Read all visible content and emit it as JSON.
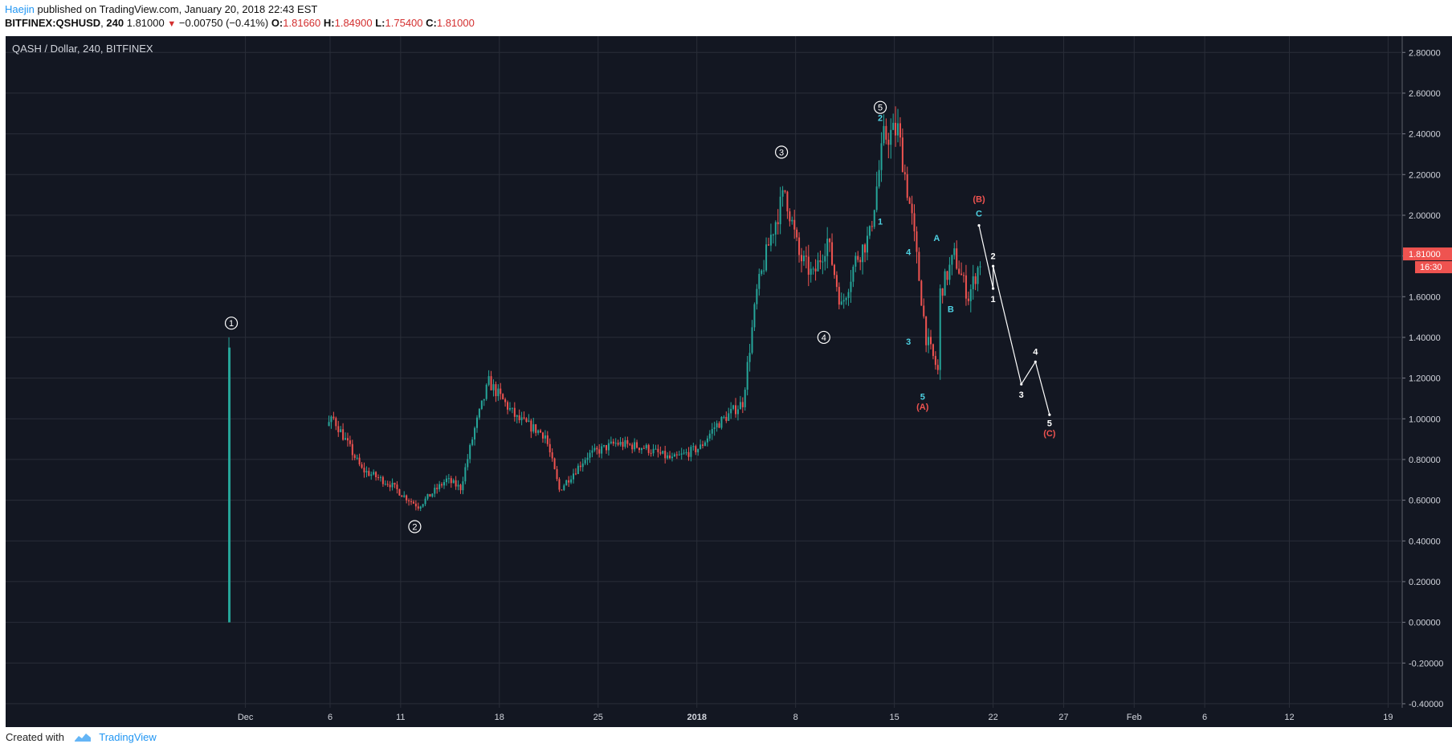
{
  "header": {
    "author": "Haejin",
    "published_text": "published on TradingView.com, January 20, 2018 22:43 EST",
    "symbol": "BITFINEX:QSHUSD",
    "interval": "240",
    "last": "1.81000",
    "change": "−0.00750 (−0.41%)",
    "o_label": "O:",
    "o_value": "1.81660",
    "h_label": "H:",
    "h_value": "1.84900",
    "l_label": "L:",
    "l_value": "1.75400",
    "c_label": "C:",
    "c_value": "1.81000"
  },
  "footer": {
    "created_with": "Created with",
    "brand": "TradingView"
  },
  "colors": {
    "up": "#26a69a",
    "down": "#ef5350",
    "bg": "#131722",
    "grid": "#2a2e39",
    "cyan": "#4dd0e1",
    "white_wave": "#ffffff",
    "abc_red": "#ef5350",
    "price_tag": "#ef5350"
  },
  "chart_data": {
    "type": "candlestick",
    "title": "QASH / Dollar, 240, BITFINEX",
    "x_axis": {
      "type": "date",
      "range": [
        "2017-11-13",
        "2018-02-20"
      ],
      "ticks": [
        {
          "date": "2017-11-30",
          "label": "Dec"
        },
        {
          "date": "2017-12-06",
          "label": "6"
        },
        {
          "date": "2017-12-11",
          "label": "11"
        },
        {
          "date": "2017-12-18",
          "label": "18"
        },
        {
          "date": "2017-12-25",
          "label": "25"
        },
        {
          "date": "2018-01-01",
          "label": "2018"
        },
        {
          "date": "2018-01-08",
          "label": "8"
        },
        {
          "date": "2018-01-15",
          "label": "15"
        },
        {
          "date": "2018-01-22",
          "label": "22"
        },
        {
          "date": "2018-01-27",
          "label": "27"
        },
        {
          "date": "2018-02-01",
          "label": "Feb"
        },
        {
          "date": "2018-02-06",
          "label": "6"
        },
        {
          "date": "2018-02-12",
          "label": "12"
        },
        {
          "date": "2018-02-19",
          "label": "19"
        }
      ]
    },
    "y_axis": {
      "range": [
        -0.42,
        2.88
      ],
      "ticks": [
        "2.80000",
        "2.60000",
        "2.40000",
        "2.20000",
        "2.00000",
        "1.80000",
        "1.60000",
        "1.40000",
        "1.20000",
        "1.00000",
        "0.80000",
        "0.60000",
        "0.40000",
        "0.20000",
        "0.00000",
        "-0.20000",
        "-0.40000"
      ]
    },
    "grid": true,
    "last_price": {
      "value": 1.81,
      "label": "1.81000",
      "countdown": "16:30"
    },
    "price_path": [
      {
        "date": "2017-11-29",
        "price": 0.0
      },
      {
        "date": "2017-11-29",
        "price": 1.38
      },
      {
        "date": "2017-11-30",
        "price": 1.0
      },
      {
        "date": "2017-12-01",
        "price": 1.12
      },
      {
        "date": "2017-12-03",
        "price": 1.0
      },
      {
        "date": "2017-12-05",
        "price": 0.93
      },
      {
        "date": "2017-12-06",
        "price": 1.0
      },
      {
        "date": "2017-12-08",
        "price": 0.75
      },
      {
        "date": "2017-12-10",
        "price": 0.68
      },
      {
        "date": "2017-12-11",
        "price": 0.62
      },
      {
        "date": "2017-12-12",
        "price": 0.57
      },
      {
        "date": "2017-12-14",
        "price": 0.7
      },
      {
        "date": "2017-12-15",
        "price": 0.66
      },
      {
        "date": "2017-12-16",
        "price": 0.95
      },
      {
        "date": "2017-12-17",
        "price": 1.18
      },
      {
        "date": "2017-12-19",
        "price": 1.0
      },
      {
        "date": "2017-12-21",
        "price": 0.92
      },
      {
        "date": "2017-12-22",
        "price": 0.65
      },
      {
        "date": "2017-12-24",
        "price": 0.82
      },
      {
        "date": "2017-12-26",
        "price": 0.88
      },
      {
        "date": "2017-12-28",
        "price": 0.86
      },
      {
        "date": "2017-12-30",
        "price": 0.8
      },
      {
        "date": "2018-01-01",
        "price": 0.86
      },
      {
        "date": "2018-01-02",
        "price": 0.96
      },
      {
        "date": "2018-01-04",
        "price": 1.08
      },
      {
        "date": "2018-01-05",
        "price": 1.62
      },
      {
        "date": "2018-01-06",
        "price": 1.9
      },
      {
        "date": "2018-01-07",
        "price": 2.12
      },
      {
        "date": "2018-01-08",
        "price": 1.8
      },
      {
        "date": "2018-01-09",
        "price": 1.7
      },
      {
        "date": "2018-01-10",
        "price": 1.88
      },
      {
        "date": "2018-01-11",
        "price": 1.55
      },
      {
        "date": "2018-01-12",
        "price": 1.78
      },
      {
        "date": "2018-01-13",
        "price": 1.9
      },
      {
        "date": "2018-01-14",
        "price": 2.38
      },
      {
        "date": "2018-01-15",
        "price": 2.42
      },
      {
        "date": "2018-01-16",
        "price": 1.98
      },
      {
        "date": "2018-01-17",
        "price": 1.4
      },
      {
        "date": "2018-01-18",
        "price": 1.2
      },
      {
        "date": "2018-01-18",
        "price": 1.62
      },
      {
        "date": "2018-01-19",
        "price": 1.8
      },
      {
        "date": "2018-01-20",
        "price": 1.6
      },
      {
        "date": "2018-01-21",
        "price": 1.81
      }
    ],
    "wave_labels": [
      {
        "text": "1",
        "style": "circle",
        "date": "2017-11-29",
        "price": 1.47
      },
      {
        "text": "2",
        "style": "circle",
        "date": "2017-12-12",
        "price": 0.47
      },
      {
        "text": "3",
        "style": "circle",
        "date": "2018-01-07",
        "price": 2.31
      },
      {
        "text": "4",
        "style": "circle",
        "date": "2018-01-10",
        "price": 1.4
      },
      {
        "text": "5",
        "style": "circle",
        "date": "2018-01-14",
        "price": 2.53
      },
      {
        "text": "2",
        "style": "cyan",
        "date": "2018-01-14",
        "price": 2.48
      },
      {
        "text": "1",
        "style": "cyan",
        "date": "2018-01-14",
        "price": 1.97
      },
      {
        "text": "4",
        "style": "cyan",
        "date": "2018-01-16",
        "price": 1.82
      },
      {
        "text": "3",
        "style": "cyan",
        "date": "2018-01-16",
        "price": 1.38
      },
      {
        "text": "5",
        "style": "cyan",
        "date": "2018-01-17",
        "price": 1.11
      },
      {
        "text": "(A)",
        "style": "red",
        "date": "2018-01-17",
        "price": 1.06
      },
      {
        "text": "A",
        "style": "cyan",
        "date": "2018-01-18",
        "price": 1.89
      },
      {
        "text": "B",
        "style": "cyan",
        "date": "2018-01-19",
        "price": 1.54
      },
      {
        "text": "C",
        "style": "cyan",
        "date": "2018-01-21",
        "price": 2.01
      },
      {
        "text": "(B)",
        "style": "red",
        "date": "2018-01-21",
        "price": 2.08
      },
      {
        "text": "1",
        "style": "white",
        "date": "2018-01-22",
        "price": 1.59
      },
      {
        "text": "2",
        "style": "white",
        "date": "2018-01-22",
        "price": 1.8
      },
      {
        "text": "3",
        "style": "white",
        "date": "2018-01-24",
        "price": 1.12
      },
      {
        "text": "4",
        "style": "white",
        "date": "2018-01-25",
        "price": 1.33
      },
      {
        "text": "5",
        "style": "white",
        "date": "2018-01-26",
        "price": 0.98
      },
      {
        "text": "(C)",
        "style": "red",
        "date": "2018-01-26",
        "price": 0.93
      }
    ],
    "projection": [
      {
        "date": "2018-01-21",
        "price": 1.95
      },
      {
        "date": "2018-01-22",
        "price": 1.64
      },
      {
        "date": "2018-01-22",
        "price": 1.75
      },
      {
        "date": "2018-01-24",
        "price": 1.17
      },
      {
        "date": "2018-01-25",
        "price": 1.28
      },
      {
        "date": "2018-01-26",
        "price": 1.02
      }
    ]
  }
}
